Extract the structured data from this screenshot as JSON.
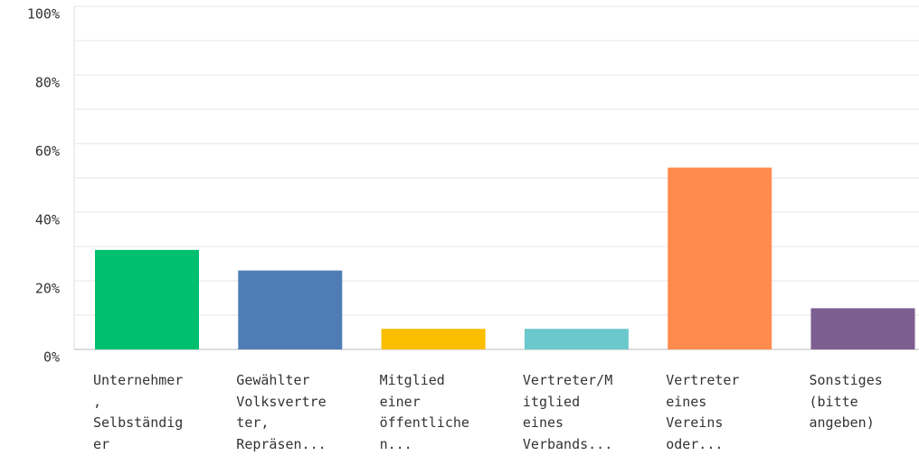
{
  "chart_data": {
    "type": "bar",
    "categories": [
      "Unternehmer\n,\nSelbständig\ner",
      "Gewählter\nVolksvertre\nter,\nRepräsen...",
      "Mitglied\neiner\nöffentliche\nn...",
      "Vertreter/M\nitglied\neines\nVerbands...",
      "Vertreter\neines\nVereins\noder...",
      "Sonstiges\n(bitte\nangeben)"
    ],
    "values": [
      29,
      23,
      6,
      6,
      53,
      12
    ],
    "colors": [
      "#00bf6f",
      "#507cb6",
      "#f9be00",
      "#6bc8cd",
      "#ff8b4f",
      "#7d5e90"
    ],
    "ylim": [
      0,
      100
    ],
    "yticks": [
      {
        "value": 0,
        "label": "0%"
      },
      {
        "value": 20,
        "label": "20%"
      },
      {
        "value": 40,
        "label": "40%"
      },
      {
        "value": 60,
        "label": "60%"
      },
      {
        "value": 80,
        "label": "80%"
      },
      {
        "value": 100,
        "label": "100%"
      }
    ],
    "minor_yticks": [
      10,
      30,
      50,
      70,
      90
    ],
    "grid": true
  }
}
